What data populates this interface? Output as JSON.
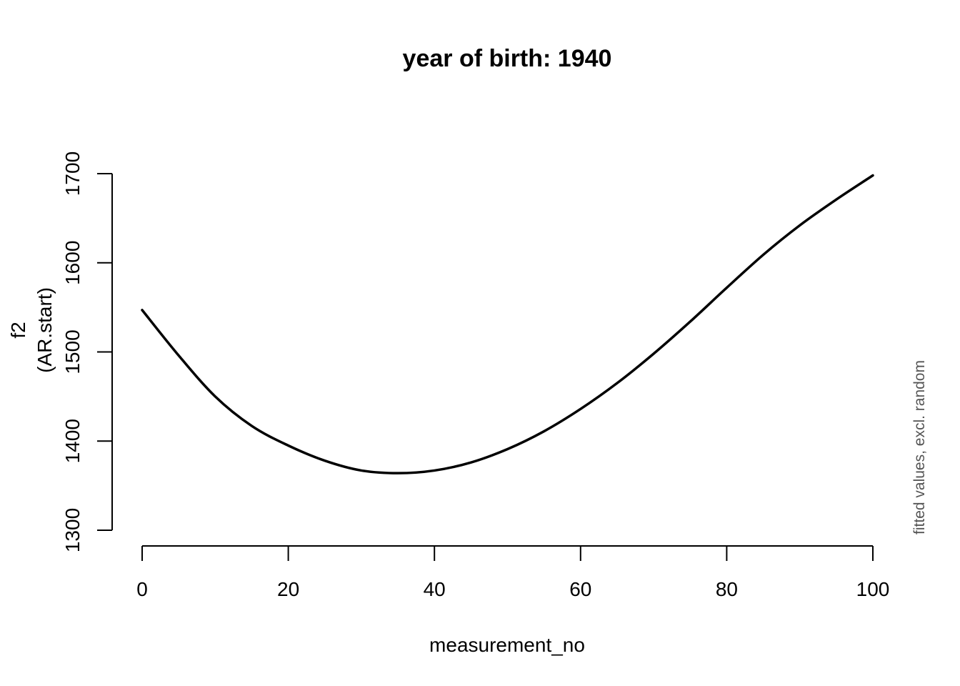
{
  "chart_data": {
    "type": "line",
    "title": "year of birth: 1940",
    "xlabel": "measurement_no",
    "ylabel_lines": [
      "f2",
      "(AR.start)"
    ],
    "side_note": "fitted values, excl. random",
    "xlim": [
      0,
      100
    ],
    "ylim": [
      1300,
      1700
    ],
    "x_ticks": [
      0,
      20,
      40,
      60,
      80,
      100
    ],
    "y_ticks": [
      1300,
      1400,
      1500,
      1600,
      1700
    ],
    "grid": false,
    "series": [
      {
        "x": [
          0,
          5,
          10,
          15,
          20,
          25,
          30,
          35,
          40,
          45,
          50,
          55,
          60,
          65,
          70,
          75,
          80,
          85,
          90,
          95,
          100
        ],
        "y": [
          1547,
          1496,
          1450,
          1417,
          1395,
          1378,
          1367,
          1364,
          1367,
          1376,
          1391,
          1411,
          1436,
          1465,
          1498,
          1534,
          1572,
          1609,
          1642,
          1671,
          1698
        ],
        "color": "#000000"
      }
    ]
  }
}
